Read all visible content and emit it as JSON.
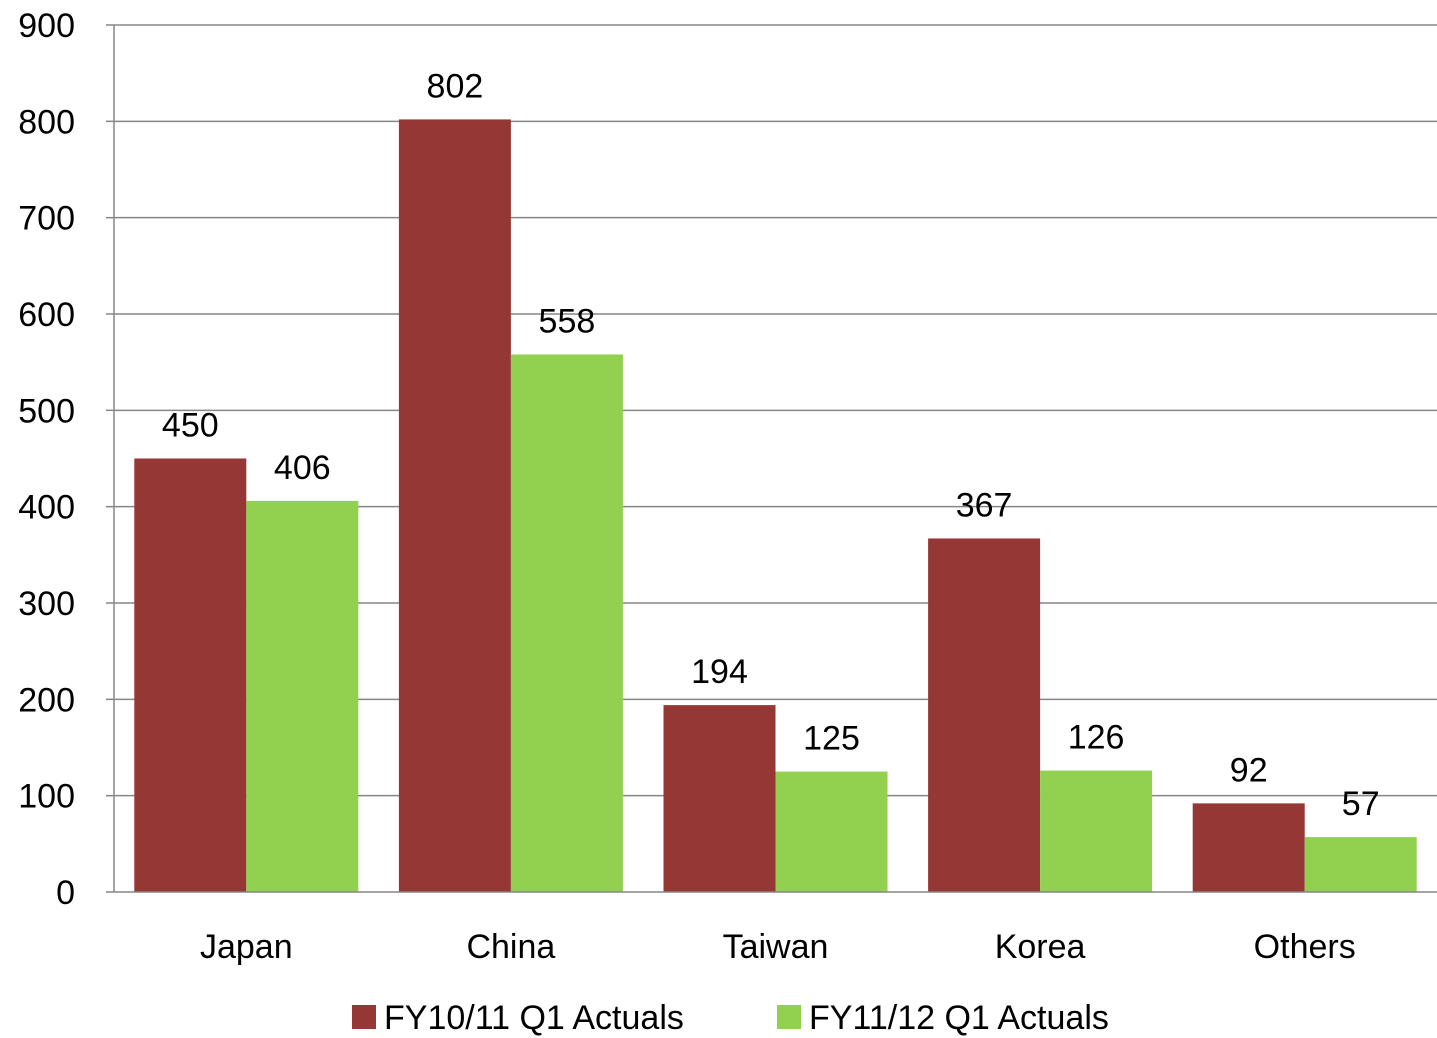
{
  "chart_data": {
    "type": "bar",
    "categories": [
      "Japan",
      "China",
      "Taiwan",
      "Korea",
      "Others"
    ],
    "series": [
      {
        "name": "FY10/11 Q1 Actuals",
        "values": [
          450,
          802,
          194,
          367,
          92
        ],
        "color": "#953735"
      },
      {
        "name": "FY11/12 Q1 Actuals",
        "values": [
          406,
          558,
          125,
          126,
          57
        ],
        "color": "#92D050"
      }
    ],
    "ylim": [
      0,
      900
    ],
    "yticks": [
      0,
      100,
      200,
      300,
      400,
      500,
      600,
      700,
      800,
      900
    ],
    "grid": true,
    "data_labels": true,
    "legend": "bottom"
  }
}
